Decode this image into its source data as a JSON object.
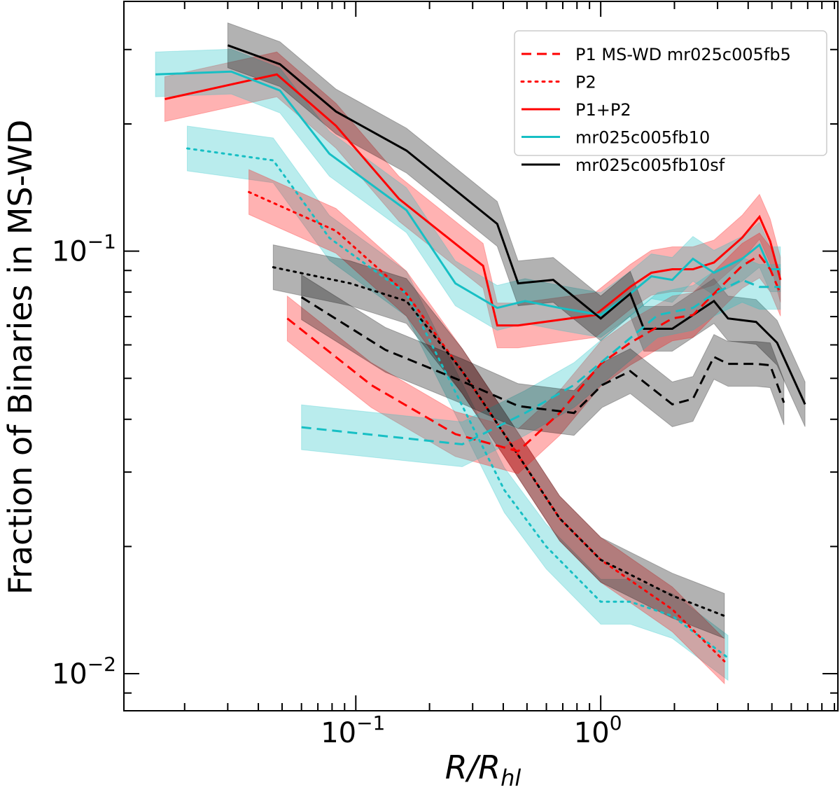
{
  "chart_data": {
    "type": "line",
    "title": "",
    "xlabel": "R/R_hl",
    "xlabel_main": "R/R",
    "xlabel_sub": "hl",
    "ylabel": "Fraction of Binaries in MS-WD",
    "xscale": "log",
    "yscale": "log",
    "xlim": [
      0.0113,
      9.3
    ],
    "ylim": [
      0.00817,
      0.39
    ],
    "grid": false,
    "legend_position": "top-right",
    "x_ticks": [
      {
        "value": 0.1,
        "base": "10",
        "exp": "−1"
      },
      {
        "value": 1,
        "base": "10",
        "exp": "0"
      }
    ],
    "y_ticks": [
      {
        "value": 0.1,
        "base": "10",
        "exp": "−1"
      },
      {
        "value": 0.01,
        "base": "10",
        "exp": "−2"
      }
    ],
    "colors": {
      "fb5": "#ff0000",
      "fb10": "#17bfc4",
      "fb10sf": "#000000"
    },
    "band_rel": 0.13,
    "legend": [
      {
        "label": "P1 MS-WD mr025c005fb5",
        "color": "#ff0000",
        "style": "dashed"
      },
      {
        "label": "P2",
        "color": "#ff0000",
        "style": "dotted"
      },
      {
        "label": "P1+P2",
        "color": "#ff0000",
        "style": "solid"
      },
      {
        "label": "mr025c005fb10",
        "color": "#17bfc4",
        "style": "solid"
      },
      {
        "label": "mr025c005fb10sf",
        "color": "#000000",
        "style": "solid"
      }
    ],
    "series": [
      {
        "model": "mr025c005fb5",
        "component": "P1+P2",
        "color": "#ff0000",
        "style": "solid",
        "x": [
          0.0166,
          0.0476,
          0.083,
          0.15,
          0.331,
          0.378,
          0.46,
          0.948,
          1.32,
          1.61,
          1.96,
          2.38,
          2.9,
          3.78,
          4.45,
          4.92,
          5.42
        ],
        "y": [
          0.229,
          0.262,
          0.198,
          0.133,
          0.0923,
          0.0667,
          0.0667,
          0.0706,
          0.0823,
          0.0889,
          0.0906,
          0.0906,
          0.094,
          0.1076,
          0.1206,
          0.1055,
          0.0855
        ]
      },
      {
        "model": "mr025c005fb10",
        "component": "P1+P2",
        "color": "#17bfc4",
        "style": "solid",
        "x": [
          0.0152,
          0.031,
          0.049,
          0.078,
          0.161,
          0.255,
          0.378,
          0.491,
          0.68,
          1,
          1.32,
          1.61,
          1.96,
          2.38,
          2.9,
          3.78,
          4.45,
          4.92,
          5.42
        ],
        "y": [
          0.262,
          0.266,
          0.24,
          0.17,
          0.125,
          0.0839,
          0.0734,
          0.0762,
          0.0734,
          0.0706,
          0.0793,
          0.0872,
          0.0855,
          0.0959,
          0.0889,
          0.0959,
          0.1035,
          0.0906,
          0.0906
        ]
      },
      {
        "model": "mr025c005fb10sf",
        "component": "P1+P2",
        "color": "#000000",
        "style": "solid",
        "x": [
          0.03,
          0.049,
          0.083,
          0.161,
          0.378,
          0.46,
          0.64,
          1,
          1.32,
          1.5,
          1.96,
          2.38,
          2.9,
          3.31,
          4.31,
          5.25,
          6.83
        ],
        "y": [
          0.307,
          0.277,
          0.214,
          0.173,
          0.116,
          0.0839,
          0.0855,
          0.0693,
          0.0793,
          0.0655,
          0.0655,
          0.0706,
          0.0762,
          0.0693,
          0.068,
          0.0607,
          0.0434
        ]
      },
      {
        "model": "mr025c005fb10",
        "component": "P2",
        "color": "#17bfc4",
        "style": "dotted",
        "x": [
          0.0205,
          0.046,
          0.078,
          0.161,
          0.255,
          0.404,
          0.599,
          1,
          1.32,
          1.96,
          3.31
        ],
        "y": [
          0.175,
          0.164,
          0.1075,
          0.0793,
          0.0464,
          0.0272,
          0.02,
          0.0148,
          0.0148,
          0.0137,
          0.0109
        ]
      },
      {
        "model": "mr025c005fb5",
        "component": "P2",
        "color": "#ff0000",
        "style": "dotted",
        "x": [
          0.0366,
          0.083,
          0.161,
          0.272,
          0.404,
          0.68,
          1,
          1.96,
          3.2
        ],
        "y": [
          0.138,
          0.1117,
          0.0793,
          0.052,
          0.0369,
          0.0233,
          0.0186,
          0.0142,
          0.0107
        ]
      },
      {
        "model": "mr025c005fb10sf",
        "component": "P2",
        "color": "#000000",
        "style": "dotted",
        "x": [
          0.046,
          0.095,
          0.161,
          0.272,
          0.404,
          0.68,
          1,
          1.96,
          3.2
        ],
        "y": [
          0.0916,
          0.0839,
          0.0762,
          0.052,
          0.0369,
          0.0233,
          0.0186,
          0.0153,
          0.0137
        ]
      },
      {
        "model": "mr025c005fb5",
        "component": "P1",
        "color": "#ff0000",
        "style": "dashed",
        "x": [
          0.0525,
          0.1156,
          0.255,
          0.46,
          0.68,
          1,
          1.32,
          1.96,
          2.38,
          2.9,
          3.78,
          4.45,
          4.92,
          5.42
        ],
        "y": [
          0.0693,
          0.0482,
          0.0369,
          0.0336,
          0.0414,
          0.0541,
          0.0607,
          0.0693,
          0.0706,
          0.0793,
          0.0923,
          0.0977,
          0.0906,
          0.0793
        ]
      },
      {
        "model": "mr025c005fb10",
        "component": "P1",
        "color": "#17bfc4",
        "style": "dashed",
        "x": [
          0.06,
          0.272,
          0.491,
          0.778,
          1.156,
          1.71,
          2.38,
          2.9,
          3.78,
          4.45,
          4.92,
          5.42
        ],
        "y": [
          0.0383,
          0.0349,
          0.0414,
          0.0482,
          0.0584,
          0.0706,
          0.0734,
          0.0793,
          0.0855,
          0.0823,
          0.0823,
          0.0823
        ]
      },
      {
        "model": "mr025c005fb10sf",
        "component": "P1",
        "color": "#000000",
        "style": "dashed",
        "x": [
          0.06,
          0.132,
          0.272,
          0.46,
          0.778,
          1.013,
          1.32,
          1.96,
          2.38,
          2.9,
          3.31,
          4.31,
          4.92,
          5.6
        ],
        "y": [
          0.0778,
          0.0584,
          0.0492,
          0.043,
          0.0414,
          0.0482,
          0.052,
          0.0434,
          0.0447,
          0.0562,
          0.0541,
          0.0541,
          0.0537,
          0.0438
        ]
      }
    ]
  }
}
